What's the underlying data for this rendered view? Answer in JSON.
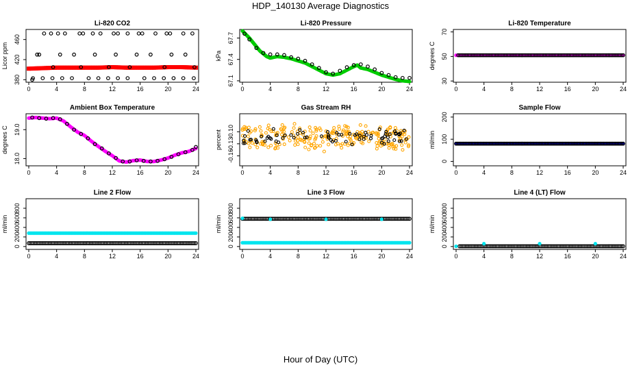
{
  "figure": {
    "title": "HDP_140130  Average Diagnostics",
    "xlabel": "Hour of Day (UTC)"
  },
  "colors": {
    "red": "#ff0000",
    "green": "#00cc00",
    "magenta": "#ff00ff",
    "orange": "#ffa500",
    "blue": "#0000cc",
    "cyan": "#00e5ee",
    "black": "#000000"
  },
  "chart_data": [
    {
      "id": "co2",
      "type": "scatter",
      "title": "Li-820 CO2",
      "ylabel": "Licor ppm",
      "ylim": [
        375,
        480
      ],
      "yticks": [
        380,
        420,
        460
      ],
      "ytick_labels": [
        "380",
        "420",
        "460"
      ],
      "xlim": [
        0,
        24
      ],
      "xticks": [
        0,
        4,
        8,
        12,
        16,
        20,
        24
      ],
      "series": [
        {
          "color": "red",
          "style": "band",
          "x": [
            0,
            2,
            4,
            6,
            8,
            10,
            12,
            14,
            16,
            18,
            20,
            22,
            24
          ],
          "y": [
            402,
            403,
            404,
            404,
            404,
            404,
            405,
            404,
            404,
            404,
            405,
            405,
            404
          ]
        },
        {
          "color": "black",
          "style": "open",
          "x": [
            0.5,
            1.2,
            2.2,
            3.2,
            4.2,
            5.2,
            7.3,
            7.8,
            9.2,
            10.3,
            12.2,
            12.8,
            14.2,
            15.8,
            16.3,
            18.2,
            19.8,
            20.3,
            22.2,
            23.5
          ],
          "y": [
            380,
            430,
            472,
            472,
            472,
            472,
            472,
            472,
            472,
            472,
            472,
            472,
            472,
            472,
            472,
            472,
            472,
            472,
            472,
            472
          ]
        },
        {
          "color": "black",
          "style": "open",
          "x": [
            1.5,
            3.5,
            4.5,
            6.5,
            7.5,
            9.5,
            11.5,
            12.5,
            14.5,
            15.5,
            17.5,
            19.5,
            20.5,
            22.5,
            23.8
          ],
          "y": [
            430,
            405,
            430,
            430,
            405,
            430,
            405,
            430,
            405,
            430,
            430,
            405,
            430,
            430,
            405
          ]
        },
        {
          "color": "black",
          "style": "open",
          "x": [
            0.6,
            2.0,
            3.4,
            4.8,
            6.2,
            8.6,
            10.0,
            11.4,
            12.8,
            14.2,
            16.6,
            18.0,
            19.4,
            20.8,
            22.2,
            23.7
          ],
          "y": [
            383,
            383,
            383,
            383,
            383,
            383,
            383,
            383,
            383,
            383,
            383,
            383,
            383,
            383,
            383,
            383
          ]
        }
      ]
    },
    {
      "id": "pressure",
      "type": "scatter",
      "title": "Li-820 Pressure",
      "ylabel": "kPa",
      "ylim": [
        67.08,
        67.82
      ],
      "yticks": [
        67.1,
        67.4,
        67.7
      ],
      "ytick_labels": [
        "67.1",
        "67.4",
        "67.7"
      ],
      "xlim": [
        0,
        24
      ],
      "xticks": [
        0,
        4,
        8,
        12,
        16,
        20,
        24
      ],
      "series": [
        {
          "color": "green",
          "style": "filled",
          "x": [
            0,
            0.5,
            1,
            1.5,
            2,
            2.5,
            3,
            3.5,
            4,
            5,
            6,
            7,
            8,
            9,
            10,
            11,
            12,
            13,
            14,
            15,
            16,
            16.5,
            17,
            18,
            19,
            20,
            21,
            22,
            23,
            24
          ],
          "y": [
            67.8,
            67.75,
            67.7,
            67.64,
            67.58,
            67.52,
            67.48,
            67.44,
            67.42,
            67.44,
            67.43,
            67.41,
            67.38,
            67.35,
            67.3,
            67.25,
            67.2,
            67.18,
            67.2,
            67.25,
            67.3,
            67.32,
            67.28,
            67.26,
            67.22,
            67.18,
            67.15,
            67.12,
            67.1,
            67.09
          ]
        },
        {
          "color": "black",
          "style": "open",
          "x": [
            0.3,
            1,
            2,
            3,
            4,
            5,
            6,
            7,
            8,
            9,
            10,
            11,
            12,
            13,
            14,
            15,
            16,
            17,
            18,
            19,
            20,
            21,
            22,
            23,
            24
          ],
          "y": [
            67.76,
            67.68,
            67.56,
            67.49,
            67.47,
            67.47,
            67.46,
            67.43,
            67.41,
            67.38,
            67.33,
            67.28,
            67.22,
            67.2,
            67.24,
            67.29,
            67.32,
            67.33,
            67.3,
            67.26,
            67.21,
            67.18,
            67.15,
            67.14,
            67.14
          ]
        }
      ]
    },
    {
      "id": "li820temp",
      "type": "scatter",
      "title": "Li-820 Temperature",
      "ylabel": "degrees C",
      "ylim": [
        29,
        72
      ],
      "yticks": [
        30,
        50,
        70
      ],
      "ytick_labels": [
        "30",
        "50",
        "70"
      ],
      "xlim": [
        0,
        24
      ],
      "xticks": [
        0,
        4,
        8,
        12,
        16,
        20,
        24
      ],
      "series": [
        {
          "color": "magenta",
          "style": "filled",
          "x": [
            0,
            24
          ],
          "y": [
            51,
            51
          ],
          "dense": true
        },
        {
          "color": "black",
          "style": "open",
          "x": [
            0.3,
            24
          ],
          "y": [
            51,
            51
          ],
          "dense": true
        }
      ]
    },
    {
      "id": "ambient",
      "type": "scatter",
      "title": "Ambient Box Temperature",
      "ylabel": "degrees C",
      "ylim": [
        17.75,
        19.55
      ],
      "yticks": [
        18.0,
        19.0
      ],
      "ytick_labels": [
        "18.0",
        "19.0"
      ],
      "xlim": [
        0,
        24
      ],
      "xticks": [
        0,
        4,
        8,
        12,
        16,
        20,
        24
      ],
      "series": [
        {
          "color": "magenta",
          "style": "filled",
          "x": [
            0,
            1,
            2,
            3,
            4,
            5,
            6,
            7,
            8,
            9,
            10,
            11,
            12,
            13,
            14,
            15,
            16,
            17,
            18,
            19,
            20,
            21,
            22,
            23,
            24
          ],
          "y": [
            19.4,
            19.42,
            19.4,
            19.38,
            19.4,
            19.3,
            19.1,
            18.92,
            18.8,
            18.6,
            18.42,
            18.25,
            18.1,
            17.92,
            17.88,
            17.93,
            17.95,
            17.9,
            17.9,
            17.95,
            18.02,
            18.12,
            18.2,
            18.25,
            18.35
          ]
        },
        {
          "color": "black",
          "style": "open",
          "x": [
            0.5,
            1.5,
            2.5,
            3.5,
            4.5,
            5.5,
            6.5,
            7.5,
            8.5,
            9.5,
            10.5,
            11.5,
            12.5,
            13.5,
            14.5,
            15.5,
            16.5,
            17.5,
            18.5,
            19.5,
            20.5,
            21.5,
            22.5,
            23.5,
            24
          ],
          "y": [
            19.42,
            19.4,
            19.38,
            19.4,
            19.36,
            19.2,
            19.0,
            18.85,
            18.7,
            18.5,
            18.35,
            18.18,
            18.02,
            17.9,
            17.9,
            17.94,
            17.92,
            17.9,
            17.92,
            17.98,
            18.06,
            18.15,
            18.22,
            18.3,
            18.4
          ]
        }
      ]
    },
    {
      "id": "rh",
      "type": "scatter",
      "title": "Gas Stream RH",
      "ylabel": "percent",
      "ylim": [
        -0.185,
        -0.055
      ],
      "yticks": [
        -0.16,
        -0.13,
        -0.1
      ],
      "ytick_labels": [
        "-0.16",
        "-0.13",
        "-0.10"
      ],
      "xlim": [
        0,
        24
      ],
      "xticks": [
        0,
        4,
        8,
        12,
        16,
        20,
        24
      ],
      "series": [
        {
          "color": "orange",
          "style": "noise",
          "center": -0.115,
          "spread": 0.03,
          "count": 260
        },
        {
          "color": "black",
          "style": "noise",
          "center": -0.112,
          "spread": 0.018,
          "count": 75
        }
      ]
    },
    {
      "id": "sampleflow",
      "type": "scatter",
      "title": "Sample Flow",
      "ylabel": "ml/min",
      "ylim": [
        -20,
        215
      ],
      "yticks": [
        0,
        100,
        200
      ],
      "ytick_labels": [
        "0",
        "100",
        "200"
      ],
      "xlim": [
        0,
        24
      ],
      "xticks": [
        0,
        4,
        8,
        12,
        16,
        20,
        24
      ],
      "series": [
        {
          "color": "blue",
          "style": "filled",
          "x": [
            0,
            24
          ],
          "y": [
            80,
            80
          ],
          "dense": true
        },
        {
          "color": "black",
          "style": "open",
          "x": [
            0,
            24
          ],
          "y": [
            80,
            80
          ],
          "dense": true
        }
      ]
    },
    {
      "id": "line2",
      "type": "scatter",
      "title": "Line 2 Flow",
      "ylabel": "ml/min",
      "ylim": [
        -60,
        1000
      ],
      "yticks": [
        0,
        200,
        400,
        600,
        800
      ],
      "ytick_labels": [
        "0",
        "200",
        "400",
        "600",
        "800"
      ],
      "xlim": [
        0,
        24
      ],
      "xticks": [
        0,
        4,
        8,
        12,
        16,
        20,
        24
      ],
      "series": [
        {
          "color": "cyan",
          "style": "filled",
          "x": [
            0,
            24
          ],
          "y": [
            280,
            280
          ],
          "dense": true
        },
        {
          "color": "black",
          "style": "open",
          "x": [
            0,
            24
          ],
          "y": [
            70,
            70
          ],
          "dense": true
        }
      ]
    },
    {
      "id": "line3",
      "type": "scatter",
      "title": "Line 3 Flow",
      "ylabel": "ml/min",
      "ylim": [
        -60,
        1000
      ],
      "yticks": [
        0,
        200,
        400,
        600,
        800
      ],
      "ytick_labels": [
        "0",
        "200",
        "400",
        "600",
        "800"
      ],
      "xlim": [
        0,
        24
      ],
      "xticks": [
        0,
        4,
        8,
        12,
        16,
        20,
        24
      ],
      "series": [
        {
          "color": "cyan",
          "style": "filled",
          "x": [
            0,
            24
          ],
          "y": [
            80,
            80
          ],
          "dense": true
        },
        {
          "color": "black",
          "style": "open",
          "x": [
            0,
            24
          ],
          "y": [
            580,
            580
          ],
          "dense": true
        },
        {
          "color": "cyan",
          "style": "filled",
          "x": [
            0,
            4,
            12,
            20
          ],
          "y": [
            590,
            570,
            570,
            570
          ]
        }
      ]
    },
    {
      "id": "line4",
      "type": "scatter",
      "title": "Line 4 (LT) Flow",
      "ylabel": "ml/min",
      "ylim": [
        -60,
        1000
      ],
      "yticks": [
        0,
        200,
        400,
        600,
        800
      ],
      "ytick_labels": [
        "0",
        "200",
        "400",
        "600",
        "800"
      ],
      "xlim": [
        0,
        24
      ],
      "xticks": [
        0,
        4,
        8,
        12,
        16,
        20,
        24
      ],
      "series": [
        {
          "color": "black",
          "style": "open",
          "x": [
            0.5,
            24
          ],
          "y": [
            5,
            5
          ],
          "dense": true
        },
        {
          "color": "cyan",
          "style": "filled",
          "x": [
            0,
            4,
            12,
            20
          ],
          "y": [
            5,
            60,
            60,
            60
          ]
        }
      ]
    }
  ]
}
